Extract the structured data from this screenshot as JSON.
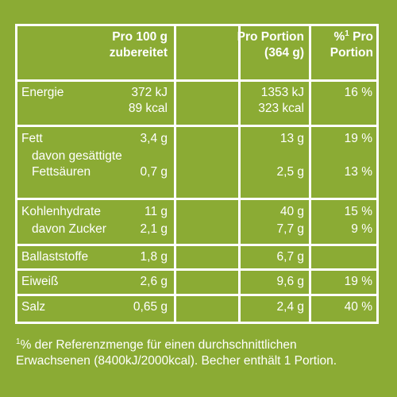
{
  "header": {
    "col1_line1": "Pro 100 g",
    "col1_line2": "zubereitet",
    "col2_line1": "Pro Portion",
    "col2_line2": "(364 g)",
    "col3_sup": "1",
    "col3_line1_pre": "%",
    "col3_line1_post": " Pro",
    "col3_line2": "Portion"
  },
  "rows": {
    "energie": {
      "label": "Energie",
      "v100_kj": "372 kJ",
      "v100_kcal": "89 kcal",
      "vp_kj": "1353 kJ",
      "vp_kcal": "323 kcal",
      "pct": "16 %"
    },
    "fett": {
      "label": "Fett",
      "v100": "3,4 g",
      "vp": "13 g",
      "pct": "19 %"
    },
    "gesaettigt": {
      "label1": "davon gesättigte",
      "label2": "Fettsäuren",
      "v100": "0,7 g",
      "vp": "2,5 g",
      "pct": "13 %"
    },
    "kohlenhydrate": {
      "label": "Kohlenhydrate",
      "v100": "11 g",
      "vp": "40 g",
      "pct": "15 %"
    },
    "zucker": {
      "label": "davon Zucker",
      "v100": "2,1 g",
      "vp": "7,7 g",
      "pct": "9 %"
    },
    "ballaststoffe": {
      "label": "Ballaststoffe",
      "v100": "1,8 g",
      "vp": "6,7 g",
      "pct": ""
    },
    "eiweiss": {
      "label": "Eiweiß",
      "v100": "2,6 g",
      "vp": "9,6 g",
      "pct": "19 %"
    },
    "salz": {
      "label": "Salz",
      "v100": "0,65 g",
      "vp": "2,4 g",
      "pct": "40 %"
    }
  },
  "footnote": {
    "sup": "1",
    "line1": "% der Referenzmenge für einen durchschnittlichen",
    "line2": "Erwachsenen (8400kJ/2000kcal). Becher enthält 1 Portion."
  },
  "colors": {
    "background": "#8bab34",
    "foreground": "#ffffff"
  }
}
